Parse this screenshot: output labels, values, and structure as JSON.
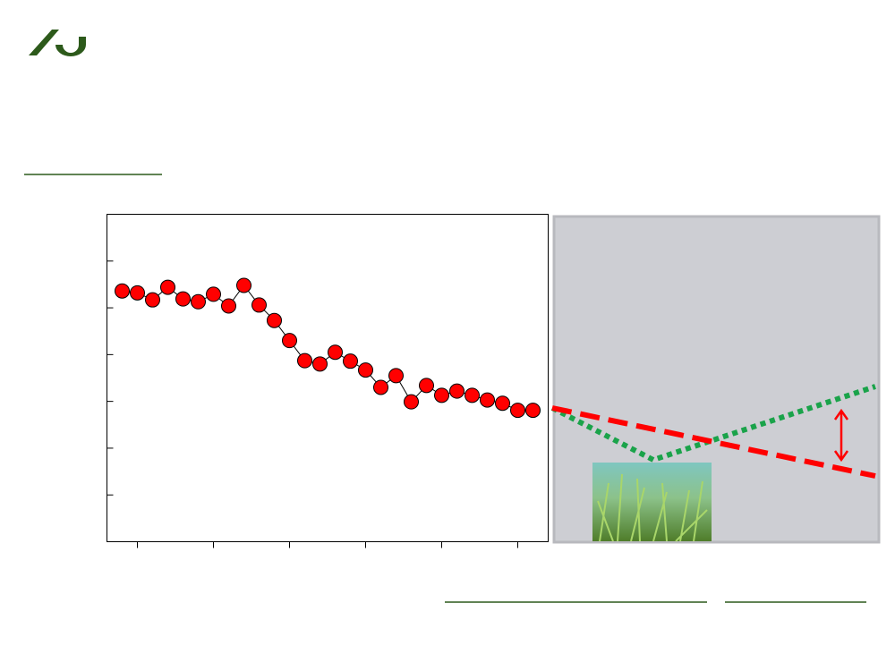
{
  "chart_data": {
    "type": "line",
    "x": [
      0,
      1,
      2,
      3,
      4,
      5,
      6,
      7,
      8,
      9,
      10,
      11,
      12,
      13,
      14,
      15,
      16,
      17,
      18,
      19,
      20,
      21,
      22,
      23,
      24,
      25,
      26,
      27
    ],
    "series": [
      {
        "color": "#ff0000",
        "line_color": "#000000",
        "values": [
          5.36,
          5.32,
          5.17,
          5.44,
          5.19,
          5.13,
          5.29,
          5.04,
          5.48,
          5.06,
          4.73,
          4.3,
          3.87,
          3.8,
          4.05,
          3.86,
          3.67,
          3.3,
          3.55,
          2.99,
          3.34,
          3.13,
          3.22,
          3.13,
          3.03,
          2.96,
          2.81,
          2.81
        ]
      }
    ],
    "xlim": [
      -1,
      28
    ],
    "ylim": [
      0,
      7
    ],
    "xticks": [
      1,
      6,
      11,
      16,
      21,
      26
    ],
    "yticks": [
      1,
      2,
      3,
      4,
      5,
      6
    ]
  }
}
